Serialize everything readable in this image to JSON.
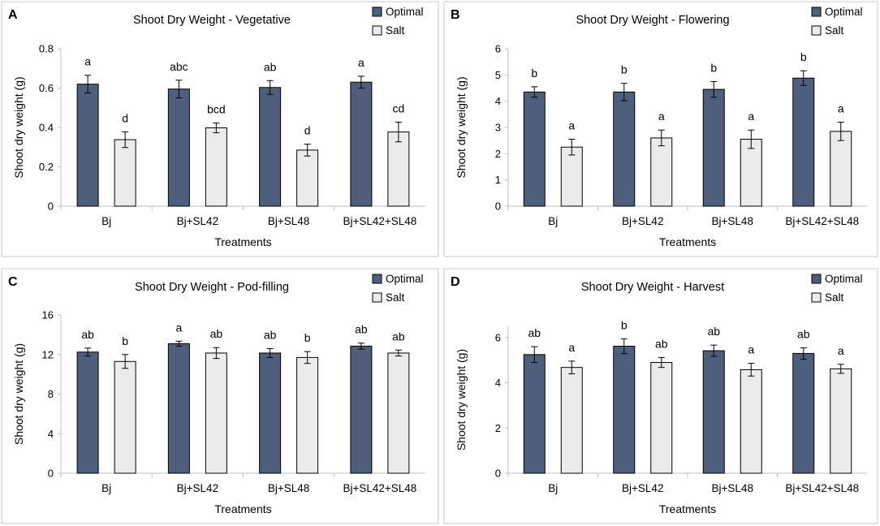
{
  "colors": {
    "optimal": "#4e5f7d",
    "salt": "#ebebeb"
  },
  "legend": [
    "Optimal",
    "Salt"
  ],
  "chart_data": [
    {
      "panel": "A",
      "type": "bar",
      "title": "Shoot Dry Weight - Vegetative",
      "xlabel": "Treatments",
      "ylabel": "Shoot dry weight (g)",
      "ylim": [
        0,
        0.8
      ],
      "yticks": [
        "0",
        "0.2",
        "0.4",
        "0.6",
        "0.8"
      ],
      "categories": [
        "Bj",
        "Bj+SL42",
        "Bj+SL48",
        "Bj+SL42+SL48"
      ],
      "series": [
        {
          "name": "Optimal",
          "values": [
            0.62,
            0.595,
            0.603,
            0.63
          ],
          "errors": [
            0.045,
            0.045,
            0.035,
            0.03
          ],
          "labels": [
            "a",
            "abc",
            "ab",
            "a"
          ]
        },
        {
          "name": "Salt",
          "values": [
            0.338,
            0.398,
            0.285,
            0.377
          ],
          "errors": [
            0.04,
            0.025,
            0.03,
            0.05
          ],
          "labels": [
            "d",
            "bcd",
            "d",
            "cd"
          ]
        }
      ]
    },
    {
      "panel": "B",
      "type": "bar",
      "title": "Shoot Dry Weight - Flowering",
      "xlabel": "Treatments",
      "ylabel": "Shoot dry weight (g)",
      "ylim": [
        0,
        6
      ],
      "yticks": [
        "0",
        "1",
        "2",
        "3",
        "4",
        "5",
        "6"
      ],
      "categories": [
        "Bj",
        "Bj+SL42",
        "Bj+SL48",
        "Bj+SL42+SL48"
      ],
      "series": [
        {
          "name": "Optimal",
          "values": [
            4.35,
            4.35,
            4.45,
            4.88
          ],
          "errors": [
            0.2,
            0.33,
            0.3,
            0.28
          ],
          "labels": [
            "b",
            "b",
            "b",
            "b"
          ]
        },
        {
          "name": "Salt",
          "values": [
            2.25,
            2.6,
            2.55,
            2.85
          ],
          "errors": [
            0.3,
            0.3,
            0.35,
            0.35
          ],
          "labels": [
            "a",
            "a",
            "a",
            "a"
          ]
        }
      ]
    },
    {
      "panel": "C",
      "type": "bar",
      "title": "Shoot Dry Weight - Pod-filling",
      "xlabel": "Treatments",
      "ylabel": "Shoot dry weight (g)",
      "ylim": [
        0,
        16
      ],
      "yticks": [
        "0",
        "4",
        "8",
        "12",
        "16"
      ],
      "categories": [
        "Bj",
        "Bj+SL42",
        "Bj+SL48",
        "Bj+SL42+SL48"
      ],
      "series": [
        {
          "name": "Optimal",
          "values": [
            12.25,
            13.1,
            12.15,
            12.85
          ],
          "errors": [
            0.4,
            0.25,
            0.45,
            0.3
          ],
          "labels": [
            "ab",
            "a",
            "ab",
            "ab"
          ]
        },
        {
          "name": "Salt",
          "values": [
            11.3,
            12.15,
            11.7,
            12.15
          ],
          "errors": [
            0.7,
            0.55,
            0.6,
            0.3
          ],
          "labels": [
            "b",
            "ab",
            "b",
            "ab"
          ]
        }
      ]
    },
    {
      "panel": "D",
      "type": "bar",
      "title": "Shoot Dry Weight - Harvest",
      "xlabel": "Treatments",
      "ylabel": "Shoot dry weight (g)",
      "ylim": [
        0,
        6.5
      ],
      "yticks": [
        "0",
        "2",
        "4",
        "6"
      ],
      "categories": [
        "Bj",
        "Bj+SL42",
        "Bj+SL48",
        "Bj+SL42+SL48"
      ],
      "series": [
        {
          "name": "Optimal",
          "values": [
            5.25,
            5.62,
            5.42,
            5.3
          ],
          "errors": [
            0.35,
            0.33,
            0.25,
            0.25
          ],
          "labels": [
            "ab",
            "b",
            "ab",
            "ab"
          ]
        },
        {
          "name": "Salt",
          "values": [
            4.68,
            4.9,
            4.58,
            4.62
          ],
          "errors": [
            0.28,
            0.22,
            0.28,
            0.2
          ],
          "labels": [
            "a",
            "ab",
            "a",
            "a"
          ]
        }
      ]
    }
  ]
}
